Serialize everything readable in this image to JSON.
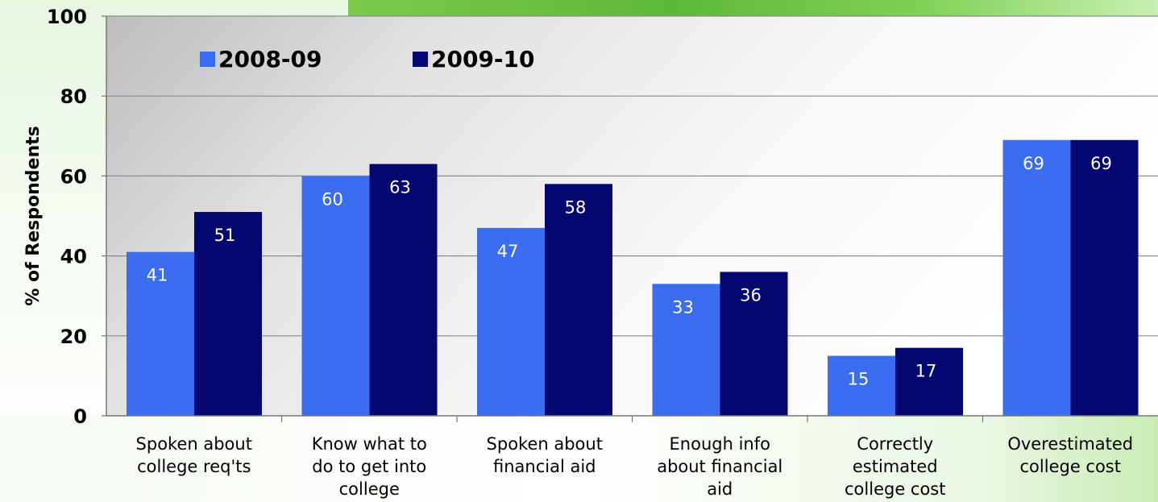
{
  "chart_data": {
    "type": "bar",
    "ylabel": "% of Respondents",
    "xlabel": "",
    "ylim": [
      0,
      100
    ],
    "yticks": [
      "0",
      "20",
      "40",
      "60",
      "80",
      "100"
    ],
    "grid": true,
    "legend_position": "top-left",
    "categories": [
      [
        "Spoken about",
        "college req'ts"
      ],
      [
        "Know what to",
        "do to get into",
        "college"
      ],
      [
        "Spoken about",
        "financial aid"
      ],
      [
        "Enough info",
        "about financial",
        "aid"
      ],
      [
        "Correctly",
        "estimated",
        "college cost"
      ],
      [
        "Overestimated",
        "college cost"
      ]
    ],
    "series": [
      {
        "name": "2008-09",
        "color": "#3a6df0",
        "values": [
          41,
          60,
          47,
          33,
          15,
          69
        ]
      },
      {
        "name": "2009-10",
        "color": "#020870",
        "values": [
          51,
          63,
          58,
          36,
          17,
          69
        ]
      }
    ]
  }
}
